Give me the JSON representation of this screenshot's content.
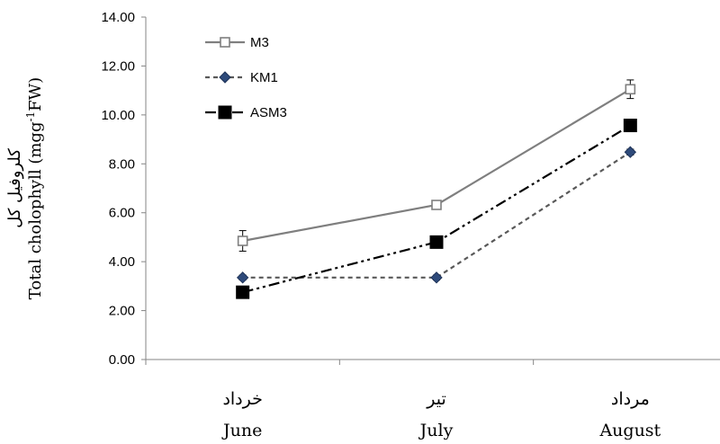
{
  "chart_data": {
    "type": "line",
    "categories": [
      {
        "fa": "خرداد",
        "en": "June"
      },
      {
        "fa": "تیر",
        "en": "July"
      },
      {
        "fa": "مرداد",
        "en": "August"
      }
    ],
    "ylim": [
      0,
      14
    ],
    "yticks": [
      "0.00",
      "2.00",
      "4.00",
      "6.00",
      "8.00",
      "10.00",
      "12.00",
      "14.00"
    ],
    "ylabel_fa": "کلروفیل کل",
    "ylabel_en": "Total cholophyll (mgg",
    "ylabel_sup": "-1",
    "ylabel_tail": "FW)",
    "series": [
      {
        "name": "M3",
        "values": [
          4.85,
          6.32,
          11.05
        ],
        "errors": [
          0.42,
          0.15,
          0.38
        ],
        "color": "#7f7f7f",
        "dash": "",
        "marker": "open-square"
      },
      {
        "name": "KM1",
        "values": [
          3.35,
          3.35,
          8.48
        ],
        "errors": [
          0.1,
          0.1,
          0.12
        ],
        "color": "#595959",
        "dash": "5,4",
        "marker": "diamond"
      },
      {
        "name": "ASM3",
        "values": [
          2.75,
          4.8,
          9.57
        ],
        "errors": [
          0.0,
          0.0,
          0.0
        ],
        "color": "#000000",
        "dash": "12,4,3,4,3,4",
        "marker": "filled-square"
      }
    ],
    "legend_position": "top-left",
    "grid": false
  }
}
